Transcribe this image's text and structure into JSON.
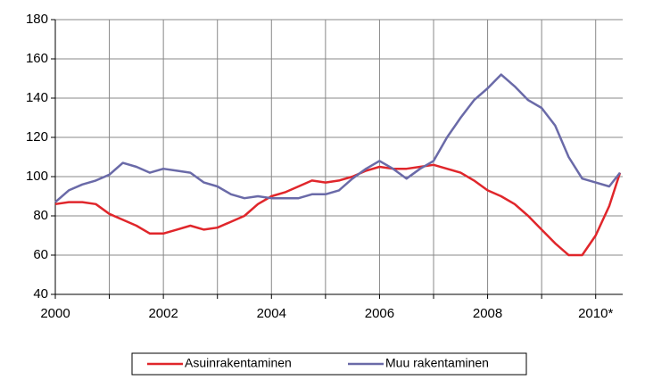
{
  "chart_data": {
    "type": "line",
    "x": [
      2000,
      2000.25,
      2000.5,
      2000.75,
      2001,
      2001.25,
      2001.5,
      2001.75,
      2002,
      2002.25,
      2002.5,
      2002.75,
      2003,
      2003.25,
      2003.5,
      2003.75,
      2004,
      2004.25,
      2004.5,
      2004.75,
      2005,
      2005.25,
      2005.5,
      2005.75,
      2006,
      2006.25,
      2006.5,
      2006.75,
      2007,
      2007.25,
      2007.5,
      2007.75,
      2008,
      2008.25,
      2008.5,
      2008.75,
      2009,
      2009.25,
      2009.5,
      2009.75,
      2010,
      2010.25,
      2010.45
    ],
    "series": [
      {
        "name": "Asuinrakentaminen",
        "color": "#e0262b",
        "values": [
          86,
          87,
          87,
          86,
          81,
          78,
          75,
          71,
          71,
          73,
          75,
          73,
          74,
          77,
          80,
          86,
          90,
          92,
          95,
          98,
          97,
          98,
          100,
          103,
          105,
          104,
          104,
          105,
          106,
          104,
          102,
          98,
          93,
          90,
          86,
          80,
          73,
          66,
          60,
          60,
          70,
          85,
          102
        ]
      },
      {
        "name": "Muu rakentaminen",
        "color": "#6a6aa8",
        "values": [
          87,
          93,
          96,
          98,
          101,
          107,
          105,
          102,
          104,
          103,
          102,
          97,
          95,
          91,
          89,
          90,
          89,
          89,
          89,
          91,
          91,
          93,
          99,
          104,
          108,
          104,
          99,
          104,
          108,
          120,
          130,
          139,
          145,
          152,
          146,
          139,
          135,
          126,
          110,
          99,
          97,
          95,
          102
        ]
      }
    ],
    "xlim": [
      2000,
      2010.5
    ],
    "xticks": [
      2000,
      2002,
      2004,
      2006,
      2008,
      {
        "value": 2010,
        "label": "2010*"
      }
    ],
    "xminor_ticks": [
      2001,
      2003,
      2005,
      2007,
      2009
    ],
    "ylim": [
      40,
      180
    ],
    "yticks": [
      40,
      60,
      80,
      100,
      120,
      140,
      160,
      180
    ],
    "grid": true,
    "legend": "bottom"
  }
}
